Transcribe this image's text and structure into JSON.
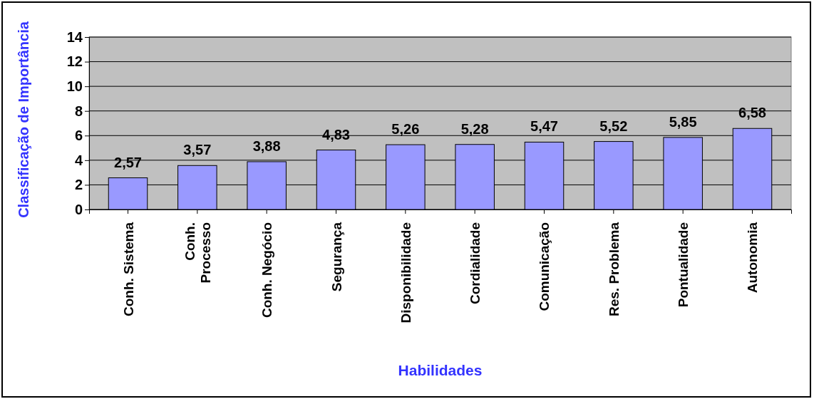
{
  "chart_data": {
    "type": "bar",
    "xlabel": "Habilidades",
    "ylabel": "Classificação de Importância",
    "categories": [
      "Conh. Sistema",
      "Conh.\nProcesso",
      "Conh. Negócio",
      "Segurança",
      "Disponibilidade",
      "Cordialidade",
      "Comunicação",
      "Res. Problema",
      "Pontualidade",
      "Autonomia"
    ],
    "values": [
      2.57,
      3.57,
      3.88,
      4.83,
      5.26,
      5.28,
      5.47,
      5.52,
      5.85,
      6.58
    ],
    "value_labels": [
      "2,57",
      "3,57",
      "3,88",
      "4,83",
      "5,26",
      "5,28",
      "5,47",
      "5,52",
      "5,85",
      "6,58"
    ],
    "color": "#9999ff",
    "ylim": [
      0,
      14
    ],
    "yticks": [
      0,
      2,
      4,
      6,
      8,
      10,
      12,
      14
    ],
    "grid": "y"
  }
}
